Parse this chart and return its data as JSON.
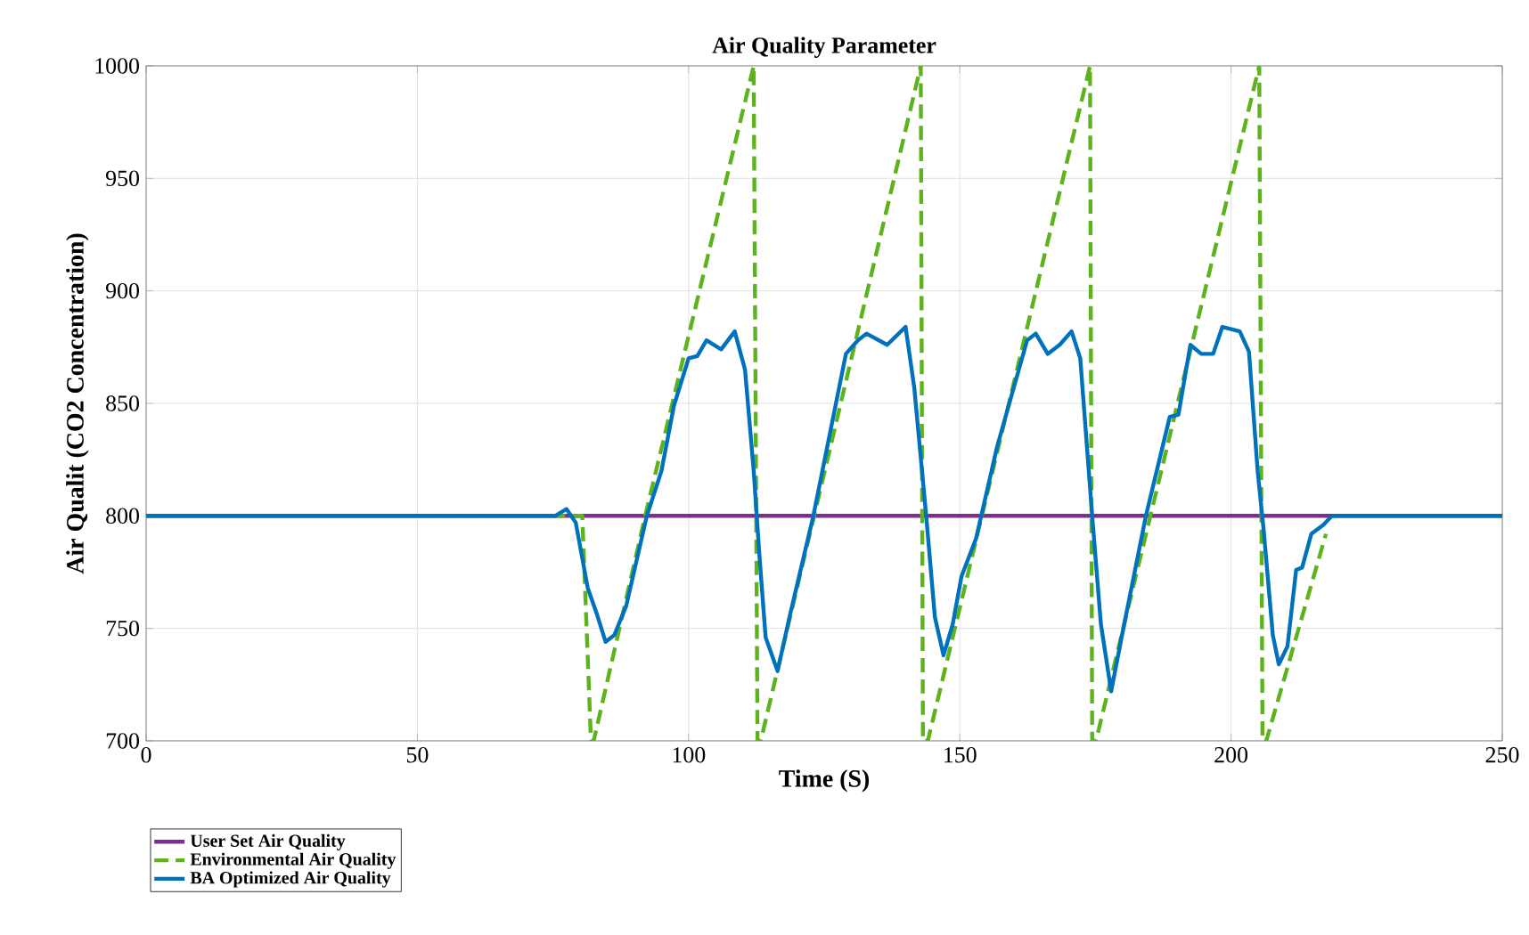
{
  "chart_data": {
    "type": "line",
    "title": "Air Quality Parameter",
    "xlabel": "Time (S)",
    "ylabel": "Air Qualit (CO2 Concentration)",
    "xlim": [
      0,
      250
    ],
    "ylim": [
      700,
      1000
    ],
    "xticks": [
      0,
      50,
      100,
      150,
      200,
      250
    ],
    "yticks": [
      700,
      750,
      800,
      850,
      900,
      950,
      1000
    ],
    "grid": true,
    "legend": "bottom left",
    "series": [
      {
        "name": "User Set Air Quality",
        "color": "#7e2f8e",
        "line_style": "solid",
        "x": [
          0,
          250
        ],
        "values": [
          800,
          800
        ]
      },
      {
        "name": "Environmental Air Quality",
        "color": "#5cb31c",
        "line_style": "dashed",
        "x": [
          0,
          80.4,
          82,
          82.5,
          92,
          112,
          112.7,
          113.3,
          142.8,
          143.2,
          144.1,
          174,
          174.4,
          175.1,
          205.2,
          205.8,
          206.5,
          217.5
        ],
        "values": [
          800,
          800,
          700,
          700,
          800,
          1000,
          700,
          700,
          1000,
          700,
          700,
          1000,
          700,
          700,
          1000,
          700,
          700,
          792
        ]
      },
      {
        "name": "BA Optimized Air Quality",
        "color": "#0072bd",
        "line_style": "solid",
        "x": [
          0,
          75.4,
          77.5,
          79.2,
          81.4,
          83,
          84.7,
          86.3,
          88.5,
          92.3,
          95,
          97.3,
          100,
          101.6,
          103.3,
          106,
          108.5,
          110.4,
          112,
          113.1,
          114.2,
          116.4,
          118.6,
          123,
          129,
          131.2,
          132.8,
          136.6,
          140,
          141.6,
          143.8,
          145.4,
          147,
          148.7,
          150.3,
          153,
          156.9,
          162.4,
          164,
          166.2,
          168.4,
          170.6,
          172.2,
          174.4,
          176,
          177.9,
          179.9,
          184.3,
          188.7,
          190.3,
          192.5,
          194.5,
          196.7,
          198.4,
          201.6,
          203.3,
          204.9,
          206,
          207.7,
          208.8,
          210.4,
          212,
          213.1,
          214.8,
          217,
          218.6,
          250
        ],
        "values": [
          800,
          800,
          803,
          797,
          768,
          757,
          744,
          747,
          760,
          800,
          820,
          849,
          870,
          871,
          878,
          874,
          882,
          865,
          820,
          781,
          746,
          731,
          755,
          800,
          872,
          878,
          881,
          876,
          884,
          857,
          800,
          755,
          738,
          752,
          773,
          790,
          831,
          878,
          881,
          872,
          876,
          882,
          870,
          800,
          752,
          722,
          747,
          800,
          844,
          845,
          876,
          872,
          872,
          884,
          882,
          873,
          820,
          794,
          747,
          734,
          742,
          776,
          777,
          792,
          796,
          800,
          800
        ]
      }
    ]
  }
}
